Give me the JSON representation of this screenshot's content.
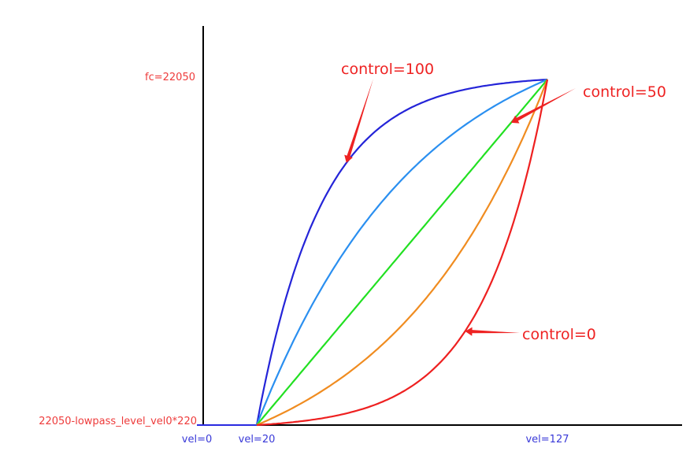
{
  "chart_data": {
    "type": "line",
    "y_tick_labels": {
      "top": "fc=22050",
      "bottom": "22050-lowpass_level_vel0*220"
    },
    "x_tick_labels": [
      "vel=0",
      "vel=20",
      "vel=127"
    ],
    "x_ticks": [
      0,
      20,
      127
    ],
    "xlim": [
      0,
      160
    ],
    "ylim": [
      0,
      1.15
    ],
    "grid": false,
    "flat_segment": {
      "x": [
        0,
        20
      ],
      "y": [
        0,
        0
      ],
      "color": "#2a2ae0"
    },
    "curve_domain": [
      20,
      127
    ],
    "series": [
      {
        "curvature": 4.5,
        "color": "#2424d8"
      },
      {
        "curvature": 1.8,
        "color": "#2a8ff0"
      },
      {
        "curvature": 0.0,
        "color": "#22e022"
      },
      {
        "curvature": -1.8,
        "color": "#f08c20"
      },
      {
        "curvature": -4.5,
        "color": "#ee2020"
      }
    ],
    "annotations": [
      {
        "text": "control=100",
        "color": "#ee2222",
        "points_to_series": 0
      },
      {
        "text": "control=50",
        "color": "#ee2222",
        "points_to_series": 2
      },
      {
        "text": "control=0",
        "color": "#ee2222",
        "points_to_series": 4
      }
    ]
  }
}
